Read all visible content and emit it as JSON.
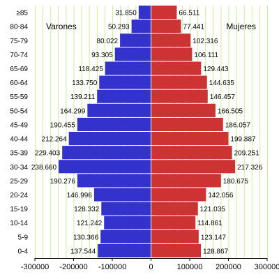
{
  "chart_data": {
    "type": "bar",
    "orientation": "horizontal-pyramid",
    "categories": [
      "≥85",
      "80-84",
      "75-79",
      "70-74",
      "65-69",
      "60-64",
      "55-59",
      "50-54",
      "45-49",
      "40-44",
      "35-39",
      "30-34",
      "25-29",
      "20-24",
      "15-19",
      "10-14",
      "5-9",
      "0-4"
    ],
    "series": [
      {
        "name": "Varones",
        "color": "#3333cc",
        "values": [
          31850,
          50293,
          80022,
          93305,
          118425,
          133750,
          139211,
          164299,
          190455,
          212264,
          229403,
          238660,
          190276,
          146996,
          128332,
          121242,
          130366,
          137544
        ],
        "labels": [
          "31.850",
          "50.293",
          "80.022",
          "93.305",
          "118.425",
          "133.750",
          "139.211",
          "164.299",
          "190.455",
          "212.264",
          "229.403",
          "238.660",
          "190.276",
          "146.996",
          "128.332",
          "121.242",
          "130.366",
          "137.544"
        ]
      },
      {
        "name": "Mujeres",
        "color": "#cc3333",
        "values": [
          66511,
          77441,
          102316,
          106111,
          129443,
          144635,
          146457,
          166505,
          186057,
          199887,
          209251,
          217326,
          180675,
          142056,
          121035,
          114861,
          123147,
          128867
        ],
        "labels": [
          "66.511",
          "77.441",
          "102.316",
          "106.111",
          "129.443",
          "144.635",
          "146.457",
          "166.505",
          "186.057",
          "199.887",
          "209.251",
          "217.326",
          "180.675",
          "142.056",
          "121.035",
          "114.861",
          "123.147",
          "128.867"
        ]
      }
    ],
    "xlim": [
      -300000,
      300000
    ],
    "xticks": [
      -300000,
      -200000,
      -100000,
      0,
      100000,
      200000,
      300000
    ],
    "xtick_labels": [
      "-300000",
      "-200000",
      "-100000",
      "0",
      "100000",
      "200000",
      "300000"
    ],
    "grid": "vertical",
    "grid_color": "#ccee99"
  }
}
